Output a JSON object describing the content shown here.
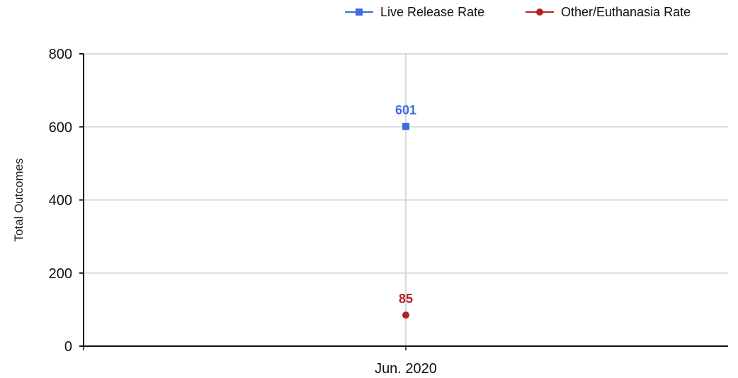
{
  "chart_data": {
    "type": "scatter",
    "title": "",
    "xlabel": "",
    "ylabel": "Total Outcomes",
    "categories": [
      "Jun. 2020"
    ],
    "ylim": [
      0,
      800
    ],
    "yticks": [
      0,
      200,
      400,
      600,
      800
    ],
    "grid": true,
    "legend_position": "top-right",
    "series": [
      {
        "name": "Live Release Rate",
        "values": [
          601
        ],
        "color": "#3c6cde",
        "marker": "square",
        "labels": [
          "601"
        ]
      },
      {
        "name": "Other/Euthanasia Rate",
        "values": [
          85
        ],
        "color": "#b22222",
        "marker": "circle",
        "labels": [
          "85"
        ]
      }
    ]
  }
}
